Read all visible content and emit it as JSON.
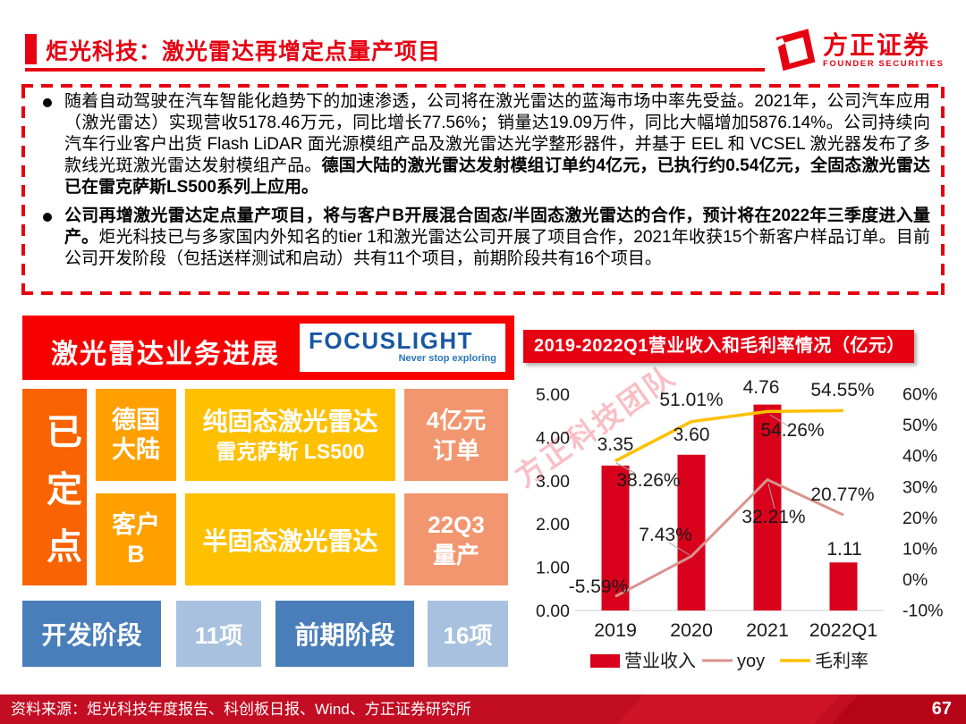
{
  "colors": {
    "accent_red": "#E60012",
    "panel_red": "#F90000",
    "footer_red": "#C20D23",
    "bar_red": "#D9001B",
    "yoy_pink": "#D9938D",
    "margin_yellow": "#FFC000",
    "orange_deep": "#F96301",
    "orange": "#FFA000",
    "amber": "#FFC000",
    "salmon": "#F2966F",
    "steel_blue": "#4A7EBB",
    "light_blue": "#A8C1DF",
    "focuslight_blue": "#1857A4"
  },
  "header": {
    "title": "炬光科技：激光雷达再增定点量产项目",
    "logo": {
      "brand": "方正证券",
      "subtitle": "FOUNDER SECURITIES"
    }
  },
  "summary": {
    "bullets": [
      {
        "segments": [
          {
            "t": "随着自动驾驶在汽车智能化趋势下的加速渗透，公司将在激光雷达的蓝海市场中率先受益。2021年，公司汽车应用（激光雷达）实现营收5178.46万元，同比增长77.56%；销量达19.09万件，同比大幅增加5876.14%。公司持续向汽车行业客户出货 Flash LiDAR 面光源模组产品及激光雷达光学整形器件，并基于 EEL 和 VCSEL 激光器发布了多款线光斑激光雷达发射模组产品。",
            "b": false
          },
          {
            "t": "德国大陆的激光雷达发射模组订单约4亿元，已执行约0.54亿元，全固态激光雷达已在雷克萨斯LS500系列上应用。",
            "b": true
          }
        ]
      },
      {
        "segments": [
          {
            "t": "公司再增激光雷达定点量产项目，将与客户B开展混合固态/半固态激光雷达的合作，预计将在2022年三季度进入量产。",
            "b": true
          },
          {
            "t": "炬光科技已与多家国内外知名的tier 1和激光雷达公司开展了项目合作，2021年收获15个新客户样品订单。目前公司开发阶段（包括送样测试和启动）共有11个项目，前期阶段共有16个项目。",
            "b": false
          }
        ]
      }
    ]
  },
  "progress": {
    "heading": "激光雷达业务进展",
    "logo": {
      "brand": "FOCUSLIGHT",
      "tagline": "Never stop exploring"
    },
    "confirmed_label": "已定点",
    "rows": [
      {
        "customer": "德国大陆",
        "product_line1": "纯固态激光雷达",
        "product_line2": "雷克萨斯 LS500",
        "status": "4亿元订单"
      },
      {
        "customer": "客户B",
        "product_line1": "半固态激光雷达",
        "product_line2": "",
        "status": "22Q3量产"
      }
    ],
    "stages": {
      "s1": "开发阶段",
      "s2": "11项",
      "s3": "前期阶段",
      "s4": "16项"
    }
  },
  "chart": {
    "title": "2019-2022Q1营业收入和毛利率情况（亿元）",
    "watermark": "方正科技团队"
  },
  "chart_data": {
    "type": "bar",
    "title": "2019-2022Q1营业收入和毛利率情况（亿元）",
    "categories": [
      "2019",
      "2020",
      "2021",
      "2022Q1"
    ],
    "series": [
      {
        "name": "营业收入",
        "type": "bar",
        "axis": "left",
        "values": [
          3.35,
          3.6,
          4.76,
          1.11
        ],
        "labels": [
          "3.35",
          "3.60",
          "4.76",
          "1.11"
        ],
        "color": "#D9001B"
      },
      {
        "name": "yoy",
        "type": "line",
        "axis": "right",
        "values": [
          -5.59,
          7.43,
          32.21,
          20.77
        ],
        "labels": [
          "-5.59%",
          "7.43%",
          "32.21%",
          "20.77%"
        ],
        "color": "#D9938D"
      },
      {
        "name": "毛利率",
        "type": "line",
        "axis": "right",
        "values": [
          38.26,
          51.01,
          54.26,
          54.55
        ],
        "labels": [
          "38.26%",
          "51.01%",
          "54.26%",
          "54.55%"
        ],
        "color": "#FFC000"
      }
    ],
    "left_axis": {
      "ticks": [
        "5.00",
        "4.00",
        "3.00",
        "2.00",
        "1.00",
        "0.00"
      ],
      "min": 0,
      "max": 5
    },
    "right_axis": {
      "ticks": [
        "60%",
        "50%",
        "40%",
        "30%",
        "20%",
        "10%",
        "0%",
        "-10%"
      ],
      "min": -10,
      "max": 60
    },
    "grid": false,
    "legend_position": "bottom"
  },
  "footer": {
    "source": "资料来源：炬光科技年度报告、科创板日报、Wind、方正证券研究所",
    "page": "67"
  }
}
